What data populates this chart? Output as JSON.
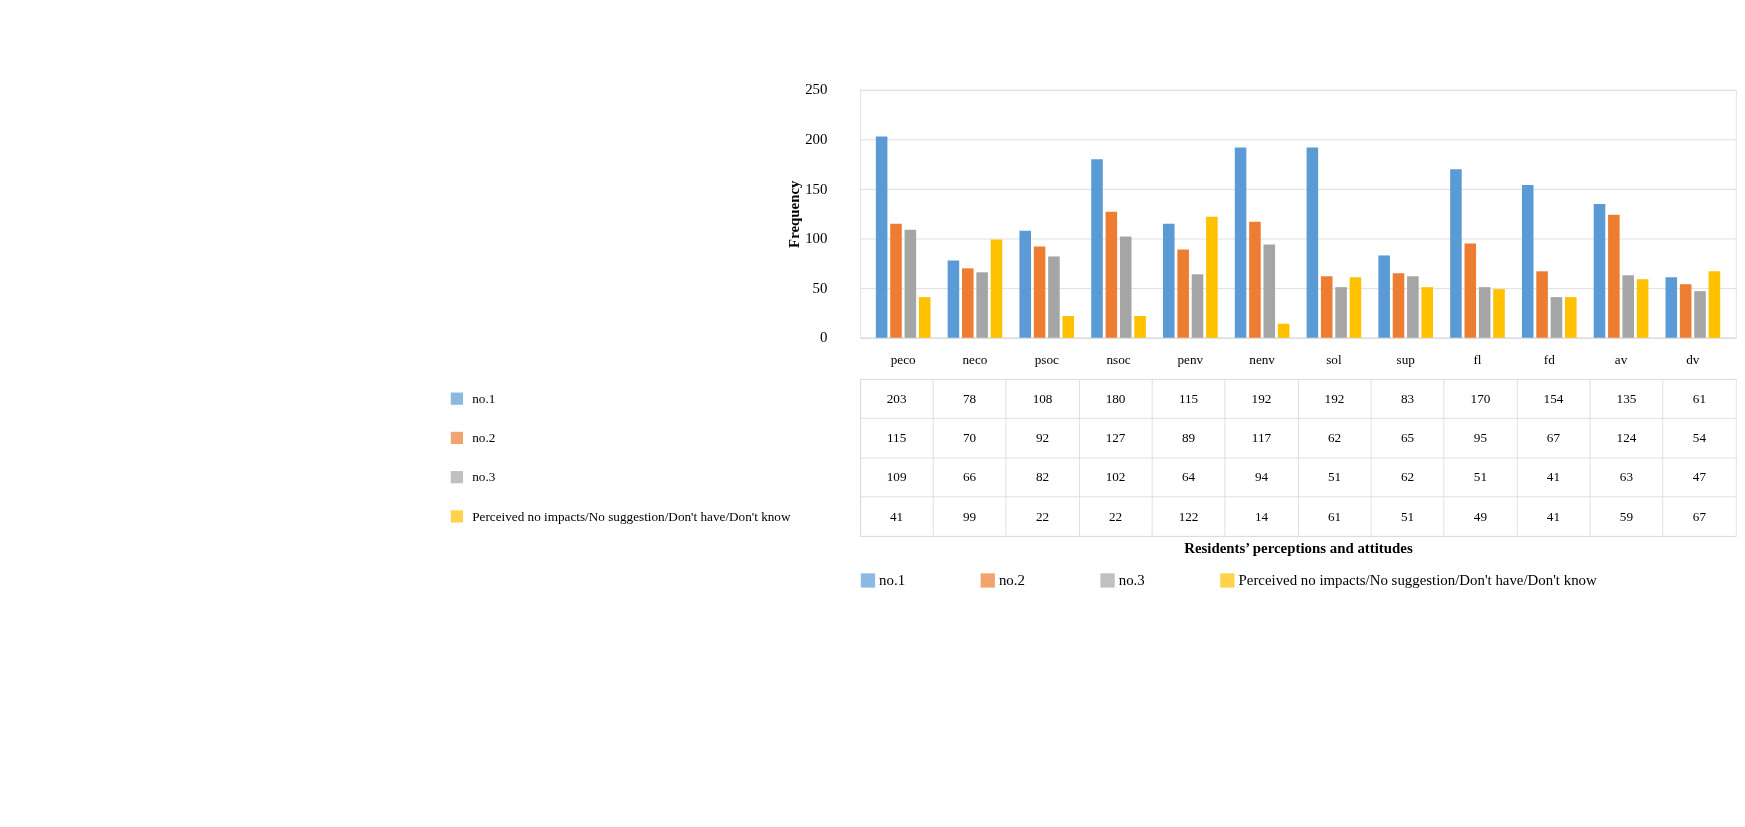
{
  "chart_data": {
    "type": "bar",
    "annotations": [
      "Residents’ perceptions and attitudes"
    ],
    "ylabel": "Frequency",
    "categories": [
      "peco",
      "neco",
      "psoc",
      "nsoc",
      "penv",
      "nenv",
      "sol",
      "sup",
      "fl",
      "fd",
      "av",
      "dv"
    ],
    "series": [
      {
        "name": "no.1",
        "color": "#5b9bd5",
        "values": [
          203,
          78,
          108,
          180,
          115,
          192,
          192,
          83,
          170,
          154,
          135,
          61
        ]
      },
      {
        "name": "no.2",
        "color": "#ed7d31",
        "values": [
          115,
          70,
          92,
          127,
          89,
          117,
          62,
          65,
          95,
          67,
          124,
          54
        ]
      },
      {
        "name": "no.3",
        "color": "#a5a5a5",
        "values": [
          109,
          66,
          82,
          102,
          64,
          94,
          51,
          62,
          51,
          41,
          63,
          47
        ]
      },
      {
        "name": "Perceived no impacts/No suggestion/Don't have/Don't know",
        "color": "#ffc000",
        "values": [
          41,
          99,
          22,
          22,
          122,
          14,
          61,
          51,
          49,
          41,
          59,
          67
        ]
      }
    ],
    "ylim": [
      0,
      250
    ],
    "yticks": [
      0,
      50,
      100,
      150,
      200,
      250
    ],
    "grid": "y",
    "legend": "bottom",
    "data_labels": true
  }
}
